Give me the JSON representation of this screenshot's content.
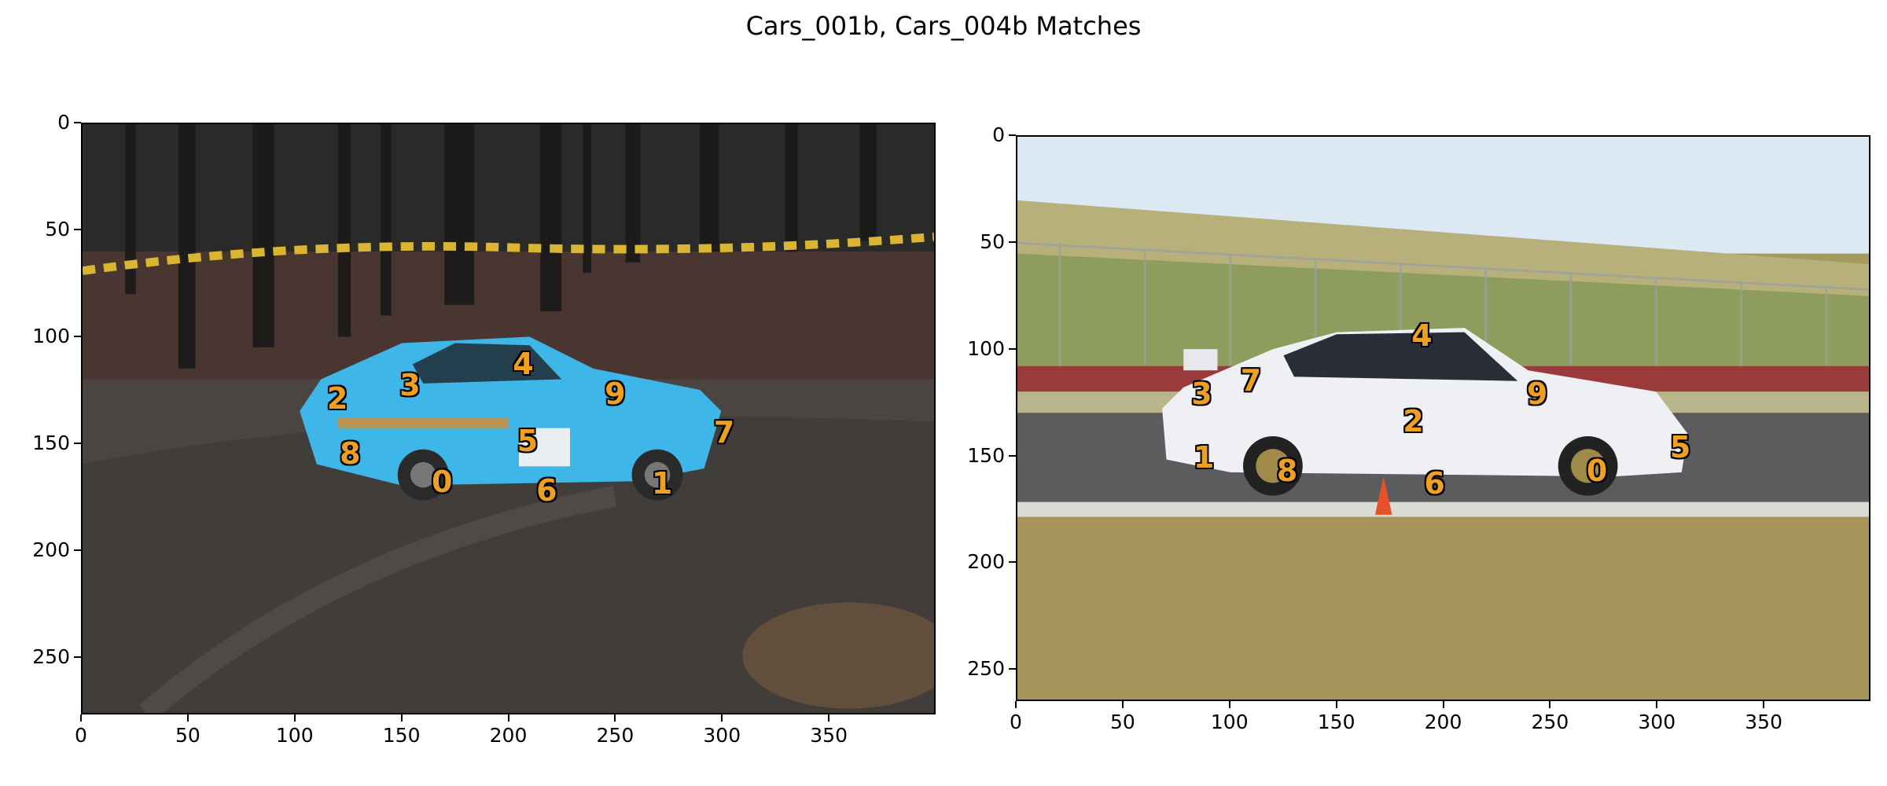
{
  "title": "Cars_001b, Cars_004b Matches",
  "panels": [
    {
      "name": "cars-001b",
      "xticks": [
        0,
        50,
        100,
        150,
        200,
        250,
        300,
        350
      ],
      "yticks": [
        0,
        50,
        100,
        150,
        200,
        250
      ],
      "xlim": [
        0,
        400
      ],
      "ylim": [
        0,
        277
      ],
      "keypoints": [
        {
          "label": "0",
          "x": 169,
          "y": 168
        },
        {
          "label": "1",
          "x": 272,
          "y": 169
        },
        {
          "label": "2",
          "x": 120,
          "y": 129
        },
        {
          "label": "3",
          "x": 154,
          "y": 123
        },
        {
          "label": "4",
          "x": 207,
          "y": 113
        },
        {
          "label": "5",
          "x": 209,
          "y": 149
        },
        {
          "label": "6",
          "x": 218,
          "y": 172
        },
        {
          "label": "7",
          "x": 301,
          "y": 145
        },
        {
          "label": "8",
          "x": 126,
          "y": 155
        },
        {
          "label": "9",
          "x": 250,
          "y": 127
        }
      ],
      "colors": {
        "car": "#3fb6e8",
        "forest": "#2e2c27",
        "ground": "#4a4540",
        "tape": "#d9b531"
      }
    },
    {
      "name": "cars-004b",
      "xticks": [
        0,
        50,
        100,
        150,
        200,
        250,
        300,
        350
      ],
      "yticks": [
        0,
        50,
        100,
        150,
        200,
        250
      ],
      "xlim": [
        0,
        400
      ],
      "ylim": [
        0,
        265
      ],
      "keypoints": [
        {
          "label": "0",
          "x": 272,
          "y": 157
        },
        {
          "label": "1",
          "x": 88,
          "y": 151
        },
        {
          "label": "2",
          "x": 186,
          "y": 134
        },
        {
          "label": "3",
          "x": 87,
          "y": 121
        },
        {
          "label": "4",
          "x": 190,
          "y": 94
        },
        {
          "label": "5",
          "x": 311,
          "y": 146
        },
        {
          "label": "6",
          "x": 196,
          "y": 163
        },
        {
          "label": "7",
          "x": 110,
          "y": 115
        },
        {
          "label": "8",
          "x": 127,
          "y": 157
        },
        {
          "label": "9",
          "x": 244,
          "y": 121
        }
      ],
      "colors": {
        "car": "#eef0f4",
        "sky": "#dce8f2",
        "grass": "#a3a46a",
        "track": "#585a5c"
      }
    }
  ]
}
